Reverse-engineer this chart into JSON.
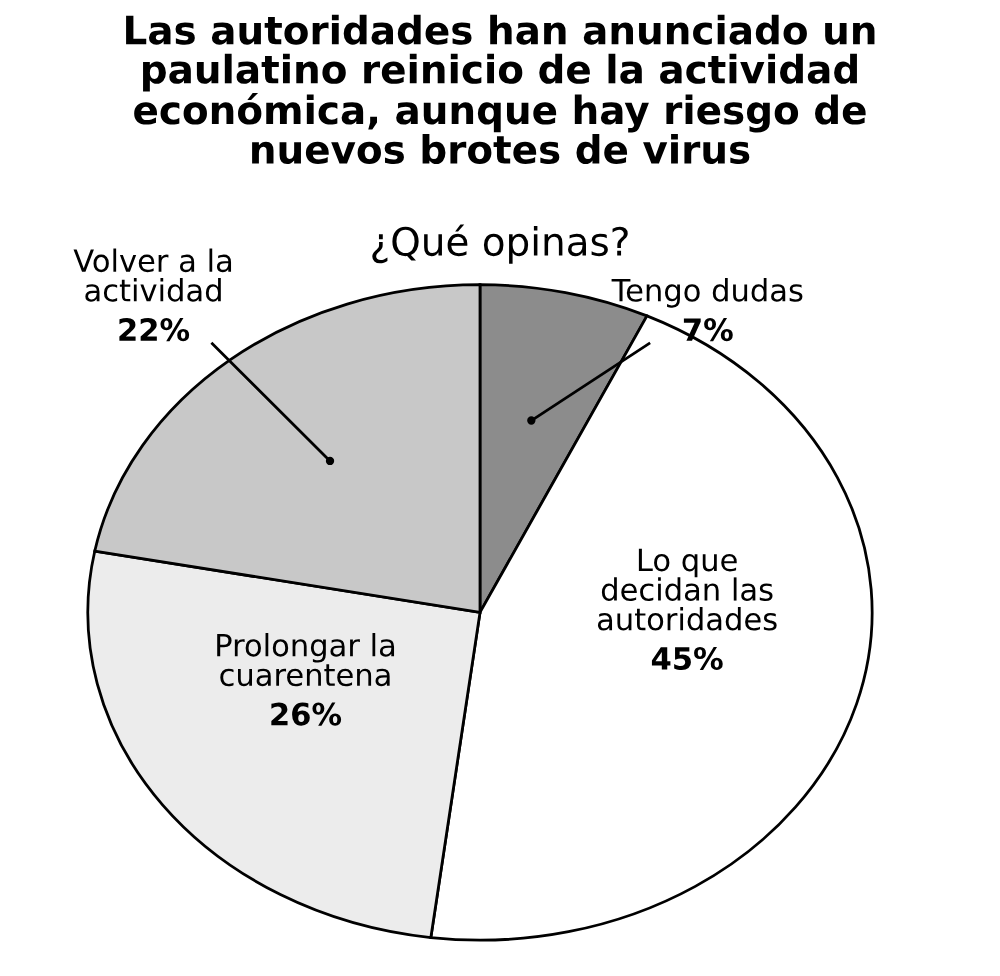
{
  "chart_data": {
    "type": "pie",
    "title": "Las autoridades han anunciado un\npaulatino reinicio de la actividad\neconómica, aunque hay riesgo de\nnuevos brotes de virus",
    "subtitle": "¿Qué opinas?",
    "categories": [
      "Tengo dudas",
      "Lo que\ndecidan las\nautoridades",
      "Prolongar la\ncuarentena",
      "Volver a la\nactividad"
    ],
    "values": [
      7,
      45,
      26,
      22
    ],
    "colors": [
      "#8c8c8c",
      "#ffffff",
      "#ececec",
      "#c8c8c8"
    ],
    "value_labels": [
      "7%",
      "45%",
      "26%",
      "22%"
    ]
  }
}
